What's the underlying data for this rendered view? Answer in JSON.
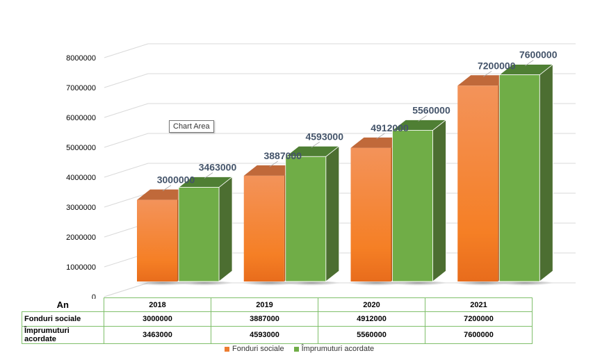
{
  "chart_data": {
    "type": "bar",
    "categories": [
      "2018",
      "2019",
      "2020",
      "2021"
    ],
    "series": [
      {
        "name": "Fonduri sociale",
        "values": [
          3000000,
          3887000,
          4912000,
          7200000
        ],
        "color": "#ed7d31"
      },
      {
        "name": "Împrumuturi acordate",
        "values": [
          3463000,
          4593000,
          5560000,
          7600000
        ],
        "color": "#70ad47"
      }
    ],
    "ylim": [
      0,
      8000000
    ],
    "yticks": [
      "0",
      "1000000",
      "2000000",
      "3000000",
      "4000000",
      "5000000",
      "6000000",
      "7000000",
      "8000000"
    ],
    "grid": true,
    "legend": "bottom",
    "title": "",
    "xlabel": "",
    "ylabel": ""
  },
  "table": {
    "corner": "An",
    "rows": [
      {
        "label": "Fonduri sociale",
        "values": [
          "3000000",
          "3887000",
          "4912000",
          "7200000"
        ]
      },
      {
        "label": "Împrumuturi acordate",
        "values": [
          "3463000",
          "4593000",
          "5560000",
          "7600000"
        ]
      }
    ]
  },
  "tooltip": "Chart Area"
}
